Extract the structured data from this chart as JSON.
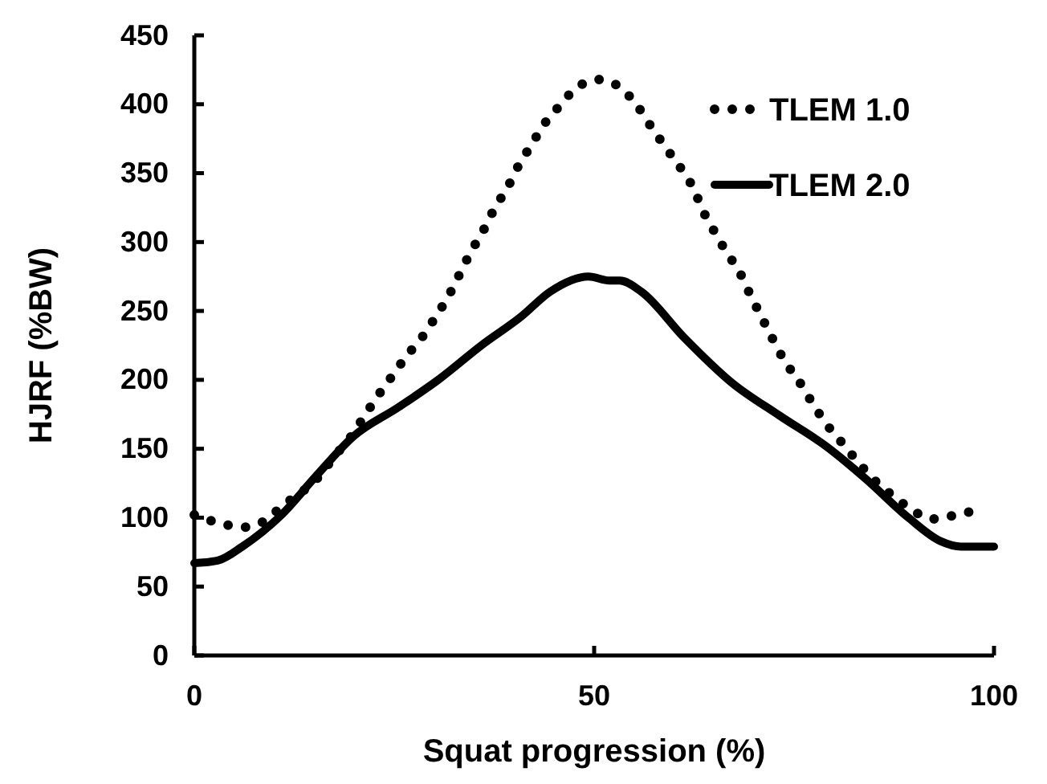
{
  "chart_data": {
    "type": "line",
    "xlabel": "Squat progression (%)",
    "ylabel": "HJRF (%BW)",
    "xlim": [
      0,
      100
    ],
    "xticks": [
      0,
      50,
      100
    ],
    "ylim": [
      0,
      450
    ],
    "yticks": [
      0,
      50,
      100,
      150,
      200,
      250,
      300,
      350,
      400,
      450
    ],
    "grid": false,
    "legend": "top right",
    "marker": "none",
    "series": [
      {
        "name": "TLEM 1.0",
        "color": "#000000",
        "line_style": "dotted",
        "x": [
          0,
          3.2,
          6.1,
          8.6,
          10.9,
          15.6,
          17.6,
          19.6,
          21.3,
          22.9,
          24.9,
          26.5,
          28.5,
          30.2,
          31.9,
          33.2,
          34.6,
          36.2,
          37.5,
          39.2,
          40.5,
          42.2,
          43.8,
          45.7,
          47.8,
          50.6,
          53.3,
          55.5,
          57.2,
          58.9,
          60.9,
          62.5,
          63.5,
          64.9,
          66.5,
          68.2,
          69.5,
          70.9,
          72.2,
          73.9,
          75.5,
          77.2,
          78.9,
          80.9,
          82.9,
          84.9,
          86.9,
          89.2,
          92.2,
          95.2,
          98.2
        ],
        "values": [
          102,
          96,
          93,
          97,
          108,
          130,
          145,
          159,
          174,
          188,
          204,
          217,
          231,
          246,
          262,
          277,
          293,
          309,
          324,
          340,
          355,
          371,
          386,
          399,
          412,
          418,
          412,
          398,
          383,
          369,
          353,
          338,
          324,
          309,
          293,
          278,
          262,
          246,
          231,
          213,
          200,
          184,
          169,
          155,
          141,
          128,
          118,
          108,
          99,
          102,
          106
        ]
      },
      {
        "name": "TLEM 2.0",
        "color": "#000000",
        "line_style": "solid",
        "x": [
          0,
          3,
          6,
          10.9,
          15.2,
          19.9,
          25.5,
          30.5,
          35.9,
          40.9,
          44.5,
          49.3,
          51.9,
          53.2,
          55.9,
          61.2,
          67.2,
          73.2,
          79.2,
          84,
          89.3,
          93.3,
          95.9,
          100
        ],
        "values": [
          67,
          69,
          79,
          102,
          130,
          159,
          180,
          200,
          225,
          246,
          264,
          275,
          272,
          272,
          264,
          231,
          198,
          174,
          151,
          128,
          100,
          83,
          79,
          79
        ]
      }
    ]
  }
}
